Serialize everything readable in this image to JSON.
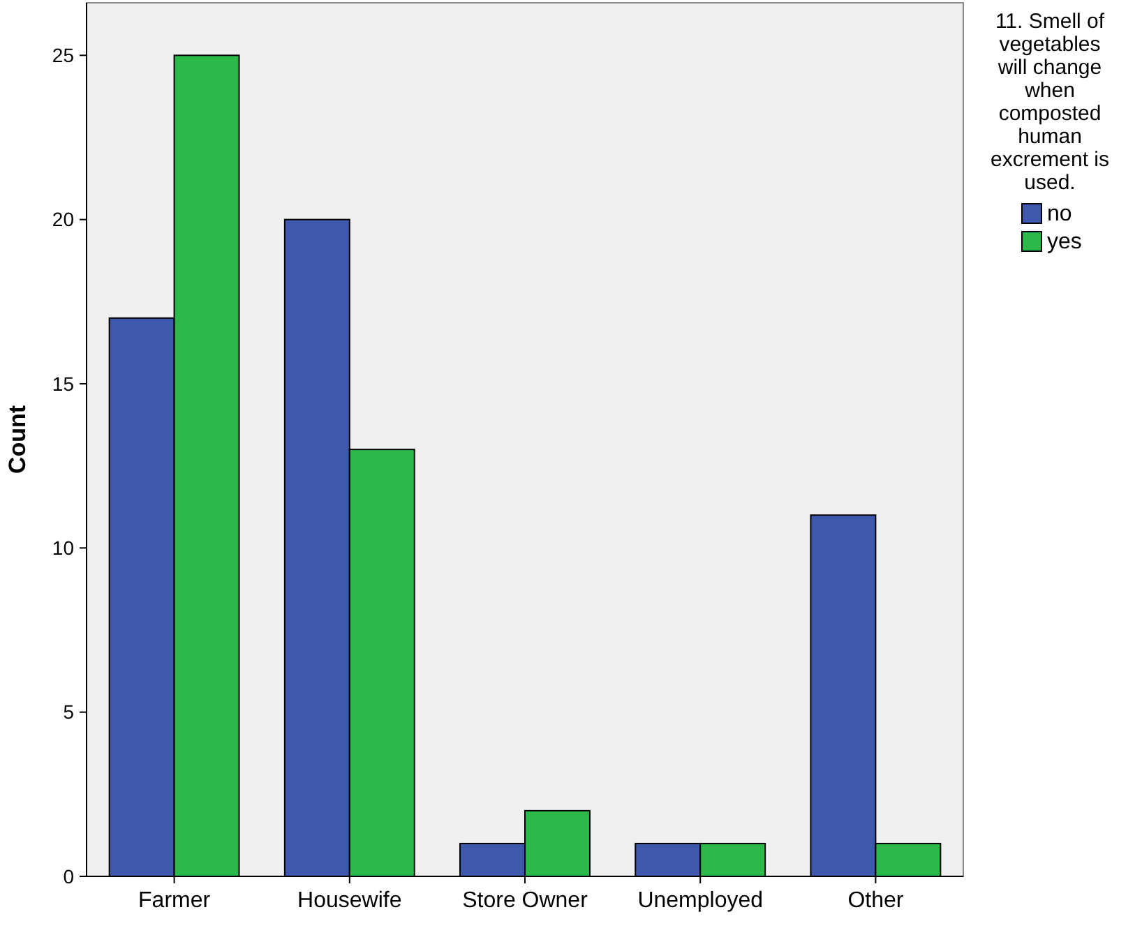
{
  "chart_data": {
    "type": "bar",
    "ylabel": "Count",
    "legend_title": "11. Smell of vegetables will change when composted human excrement is used.",
    "categories": [
      "Farmer",
      "Housewife",
      "Store Owner",
      "Unemployed",
      "Other"
    ],
    "series": [
      {
        "name": "no",
        "color": "#3e58ac",
        "values": [
          17,
          20,
          1,
          1,
          11
        ]
      },
      {
        "name": "yes",
        "color": "#2db84a",
        "values": [
          25,
          13,
          2,
          1,
          1
        ]
      }
    ],
    "ylim": [
      0,
      26.6
    ],
    "yticks": [
      0,
      5,
      10,
      15,
      20,
      25
    ],
    "grid": false,
    "legend": "right"
  }
}
